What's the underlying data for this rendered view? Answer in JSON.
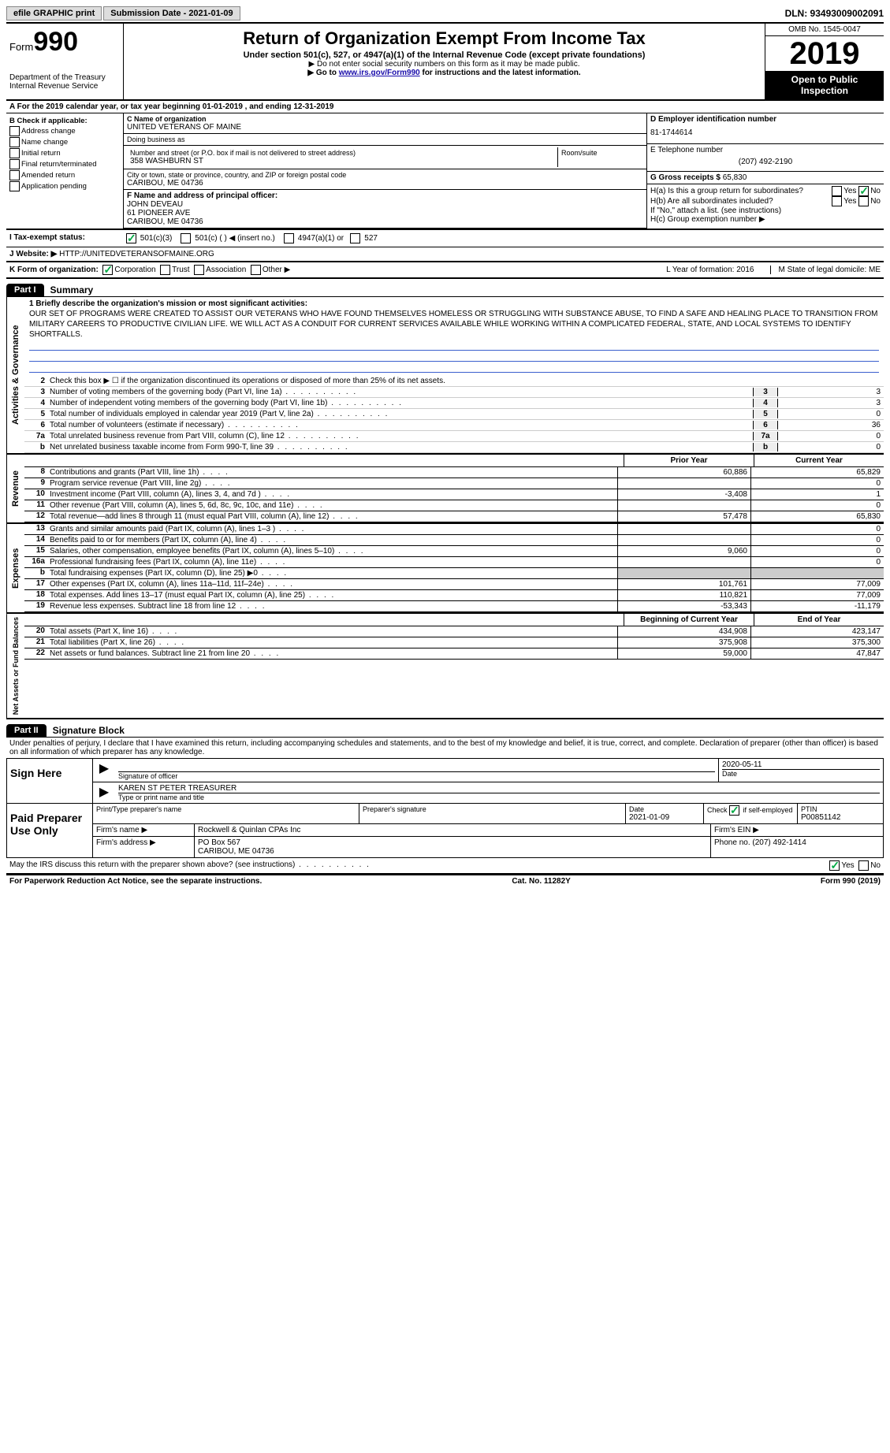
{
  "topbar": {
    "efile": "efile GRAPHIC print",
    "submission": "Submission Date - 2021-01-09",
    "dln": "DLN: 93493009002091"
  },
  "header": {
    "form_label": "Form",
    "form_number": "990",
    "title": "Return of Organization Exempt From Income Tax",
    "subtitle": "Under section 501(c), 527, or 4947(a)(1) of the Internal Revenue Code (except private foundations)",
    "warn1": "▶ Do not enter social security numbers on this form as it may be made public.",
    "warn2_pre": "▶ Go to ",
    "warn2_link": "www.irs.gov/Form990",
    "warn2_post": " for instructions and the latest information.",
    "dept": "Department of the Treasury\nInternal Revenue Service",
    "omb": "OMB No. 1545-0047",
    "year": "2019",
    "open": "Open to Public Inspection"
  },
  "row_a": "A For the 2019 calendar year, or tax year beginning 01-01-2019    , and ending 12-31-2019",
  "col_b": {
    "title": "B Check if applicable:",
    "opts": [
      "Address change",
      "Name change",
      "Initial return",
      "Final return/terminated",
      "Amended return",
      "Application pending"
    ]
  },
  "col_c": {
    "name_label": "C Name of organization",
    "name": "UNITED VETERANS OF MAINE",
    "dba_label": "Doing business as",
    "dba": "",
    "addr_label": "Number and street (or P.O. box if mail is not delivered to street address)",
    "room_label": "Room/suite",
    "addr": "358 WASHBURN ST",
    "city_label": "City or town, state or province, country, and ZIP or foreign postal code",
    "city": "CARIBOU, ME  04736"
  },
  "col_d": {
    "ein_label": "D Employer identification number",
    "ein": "81-1744614",
    "tel_label": "E Telephone number",
    "tel": "(207) 492-2190",
    "gross_label": "G Gross receipts $",
    "gross": "65,830"
  },
  "col_f": {
    "label": "F  Name and address of principal officer:",
    "name": "JOHN DEVEAU",
    "addr1": "61 PIONEER AVE",
    "addr2": "CARIBOU, ME  04736"
  },
  "col_h": {
    "ha": "H(a)  Is this a group return for subordinates?",
    "hb": "H(b)  Are all subordinates included?",
    "hb_note": "If \"No,\" attach a list. (see instructions)",
    "hc": "H(c)  Group exemption number ▶"
  },
  "row_i": {
    "label": "I   Tax-exempt status:",
    "o1": "501(c)(3)",
    "o2": "501(c) (   ) ◀ (insert no.)",
    "o3": "4947(a)(1) or",
    "o4": "527"
  },
  "row_j": {
    "label": "J   Website: ▶",
    "url": "HTTP://UNITEDVETERANSOFMAINE.ORG"
  },
  "row_k": {
    "label": "K Form of organization:",
    "opts": [
      "Corporation",
      "Trust",
      "Association",
      "Other ▶"
    ],
    "l": "L Year of formation: 2016",
    "m": "M State of legal domicile: ME"
  },
  "part1": {
    "tab": "Part I",
    "title": "Summary"
  },
  "gov": {
    "label": "Activities & Governance",
    "l1_label": "1  Briefly describe the organization's mission or most significant activities:",
    "l1_text": "OUR SET OF PROGRAMS WERE CREATED TO ASSIST OUR VETERANS WHO HAVE FOUND THEMSELVES HOMELESS OR STRUGGLING WITH SUBSTANCE ABUSE, TO FIND A SAFE AND HEALING PLACE TO TRANSITION FROM MILITARY CAREERS TO PRODUCTIVE CIVILIAN LIFE. WE WILL ACT AS A CONDUIT FOR CURRENT SERVICES AVAILABLE WHILE WORKING WITHIN A COMPLICATED FEDERAL, STATE, AND LOCAL SYSTEMS TO IDENTIFY SHORTFALLS.",
    "l2": "Check this box ▶ ☐  if the organization discontinued its operations or disposed of more than 25% of its net assets.",
    "lines": [
      {
        "n": "3",
        "d": "Number of voting members of the governing body (Part VI, line 1a)",
        "v": "3"
      },
      {
        "n": "4",
        "d": "Number of independent voting members of the governing body (Part VI, line 1b)",
        "v": "3"
      },
      {
        "n": "5",
        "d": "Total number of individuals employed in calendar year 2019 (Part V, line 2a)",
        "v": "0"
      },
      {
        "n": "6",
        "d": "Total number of volunteers (estimate if necessary)",
        "v": "36"
      },
      {
        "n": "7a",
        "d": "Total unrelated business revenue from Part VIII, column (C), line 12",
        "v": "0"
      },
      {
        "n": "b",
        "d": "Net unrelated business taxable income from Form 990-T, line 39",
        "v": "0"
      }
    ]
  },
  "rev": {
    "label": "Revenue",
    "hdr1": "Prior Year",
    "hdr2": "Current Year",
    "lines": [
      {
        "n": "8",
        "d": "Contributions and grants (Part VIII, line 1h)",
        "p": "60,886",
        "c": "65,829"
      },
      {
        "n": "9",
        "d": "Program service revenue (Part VIII, line 2g)",
        "p": "",
        "c": "0"
      },
      {
        "n": "10",
        "d": "Investment income (Part VIII, column (A), lines 3, 4, and 7d )",
        "p": "-3,408",
        "c": "1"
      },
      {
        "n": "11",
        "d": "Other revenue (Part VIII, column (A), lines 5, 6d, 8c, 9c, 10c, and 11e)",
        "p": "",
        "c": "0"
      },
      {
        "n": "12",
        "d": "Total revenue—add lines 8 through 11 (must equal Part VIII, column (A), line 12)",
        "p": "57,478",
        "c": "65,830"
      }
    ]
  },
  "exp": {
    "label": "Expenses",
    "lines": [
      {
        "n": "13",
        "d": "Grants and similar amounts paid (Part IX, column (A), lines 1–3 )",
        "p": "",
        "c": "0"
      },
      {
        "n": "14",
        "d": "Benefits paid to or for members (Part IX, column (A), line 4)",
        "p": "",
        "c": "0"
      },
      {
        "n": "15",
        "d": "Salaries, other compensation, employee benefits (Part IX, column (A), lines 5–10)",
        "p": "9,060",
        "c": "0"
      },
      {
        "n": "16a",
        "d": "Professional fundraising fees (Part IX, column (A), line 11e)",
        "p": "",
        "c": "0"
      },
      {
        "n": "b",
        "d": "Total fundraising expenses (Part IX, column (D), line 25) ▶0",
        "p": "—",
        "c": "—"
      },
      {
        "n": "17",
        "d": "Other expenses (Part IX, column (A), lines 11a–11d, 11f–24e)",
        "p": "101,761",
        "c": "77,009"
      },
      {
        "n": "18",
        "d": "Total expenses. Add lines 13–17 (must equal Part IX, column (A), line 25)",
        "p": "110,821",
        "c": "77,009"
      },
      {
        "n": "19",
        "d": "Revenue less expenses. Subtract line 18 from line 12",
        "p": "-53,343",
        "c": "-11,179"
      }
    ]
  },
  "net": {
    "label": "Net Assets or Fund Balances",
    "hdr1": "Beginning of Current Year",
    "hdr2": "End of Year",
    "lines": [
      {
        "n": "20",
        "d": "Total assets (Part X, line 16)",
        "p": "434,908",
        "c": "423,147"
      },
      {
        "n": "21",
        "d": "Total liabilities (Part X, line 26)",
        "p": "375,908",
        "c": "375,300"
      },
      {
        "n": "22",
        "d": "Net assets or fund balances. Subtract line 21 from line 20",
        "p": "59,000",
        "c": "47,847"
      }
    ]
  },
  "part2": {
    "tab": "Part II",
    "title": "Signature Block",
    "decl": "Under penalties of perjury, I declare that I have examined this return, including accompanying schedules and statements, and to the best of my knowledge and belief, it is true, correct, and complete. Declaration of preparer (other than officer) is based on all information of which preparer has any knowledge."
  },
  "sign": {
    "label": "Sign Here",
    "sig_label": "Signature of officer",
    "date": "2020-05-11",
    "date_label": "Date",
    "name": "KAREN ST PETER  TREASURER",
    "name_label": "Type or print name and title"
  },
  "prep": {
    "label": "Paid Preparer Use Only",
    "pt_label": "Print/Type preparer's name",
    "sig_label": "Preparer's signature",
    "date_label": "Date",
    "date": "2021-01-09",
    "check_label": "Check ☑ if self-employed",
    "ptin_label": "PTIN",
    "ptin": "P00851142",
    "firm_name_label": "Firm's name    ▶",
    "firm_name": "Rockwell & Quinlan CPAs Inc",
    "firm_ein_label": "Firm's EIN ▶",
    "firm_addr_label": "Firm's address ▶",
    "firm_addr1": "PO Box 567",
    "firm_addr2": "CARIBOU, ME  04736",
    "phone_label": "Phone no.",
    "phone": "(207) 492-1414"
  },
  "discuss": "May the IRS discuss this return with the preparer shown above? (see instructions)",
  "footer": {
    "left": "For Paperwork Reduction Act Notice, see the separate instructions.",
    "mid": "Cat. No. 11282Y",
    "right": "Form 990 (2019)"
  }
}
